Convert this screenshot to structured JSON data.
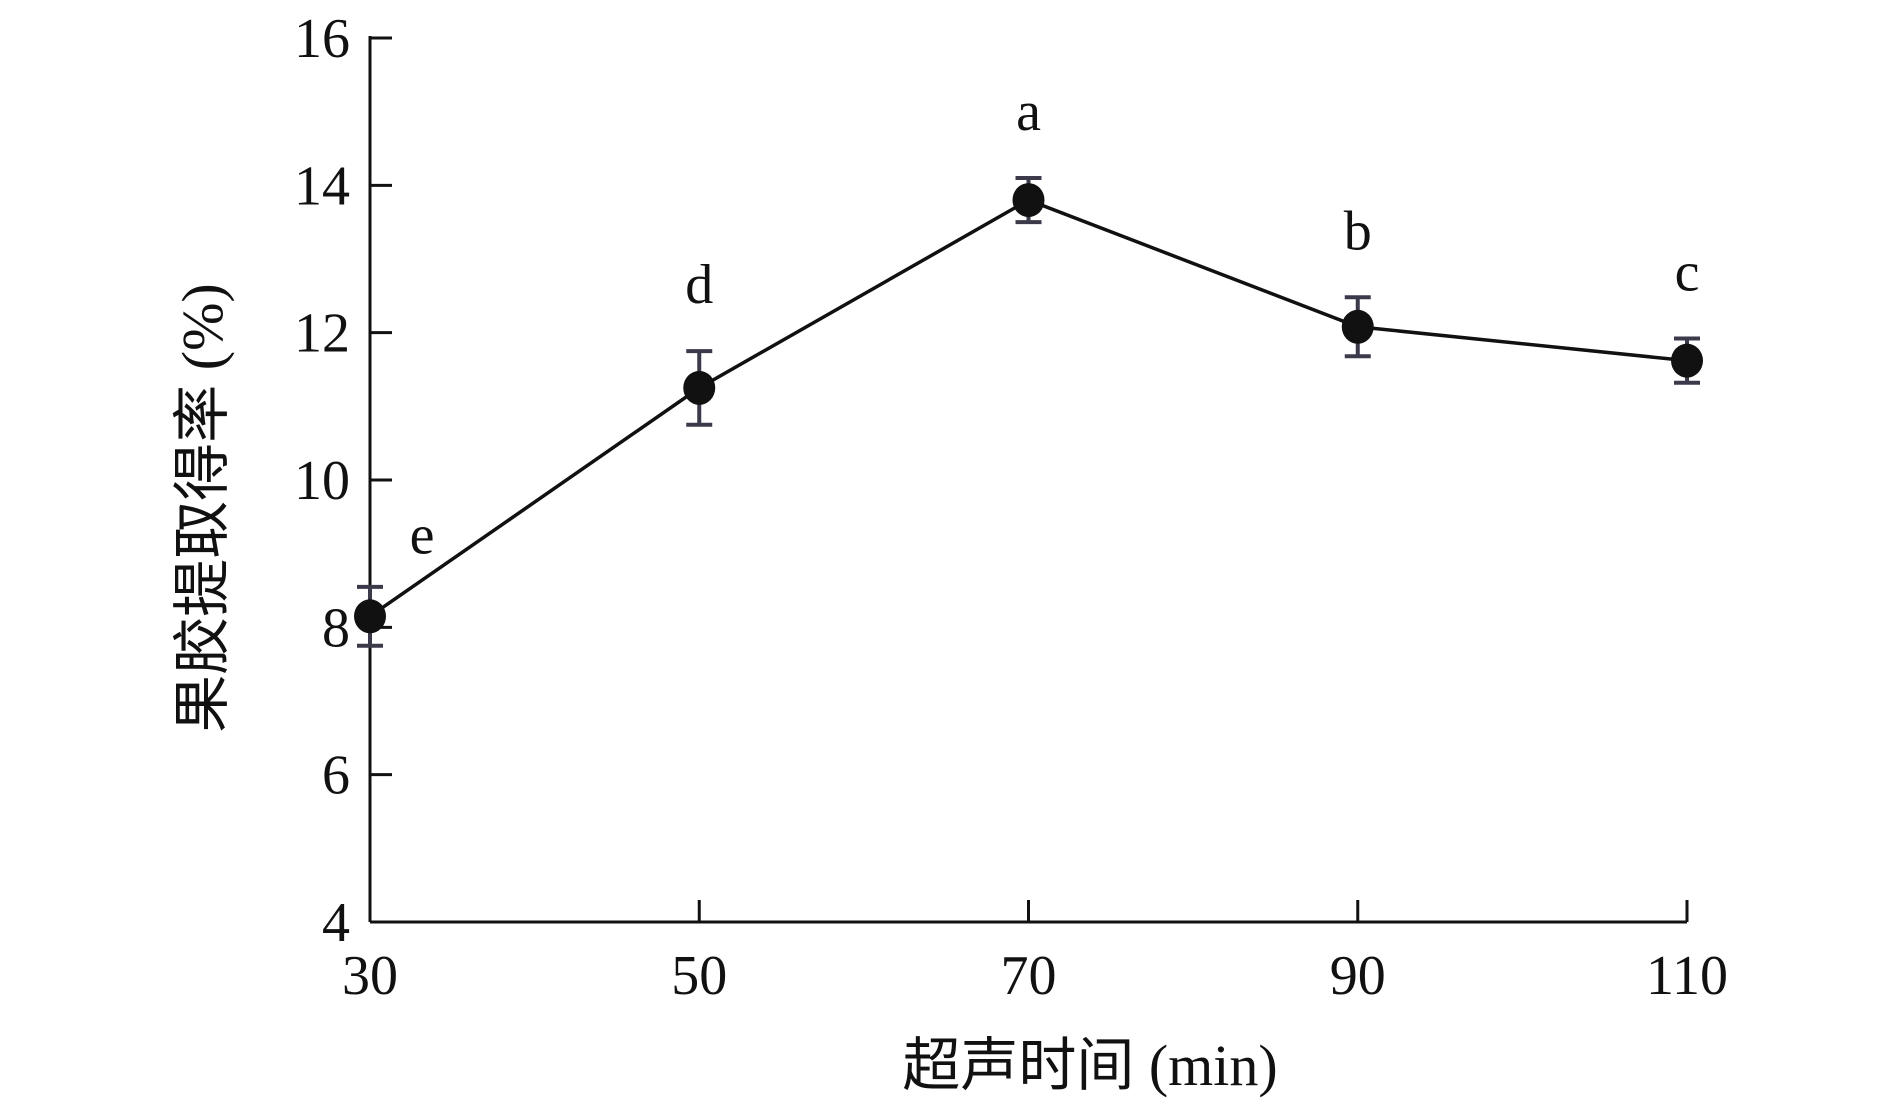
{
  "chart_data": {
    "type": "line",
    "xlabel": "超声时间 (min)",
    "ylabel": "果胶提取得率 (%)",
    "xlim": [
      30,
      110
    ],
    "ylim": [
      4,
      16
    ],
    "xticks": [
      30,
      50,
      70,
      90,
      110
    ],
    "yticks": [
      4,
      6,
      8,
      10,
      12,
      14,
      16
    ],
    "grid": false,
    "legend": "none",
    "colors": {
      "line": "#111111",
      "marker": "#111111",
      "error_bar": "#3a3a4a"
    },
    "series": [
      {
        "x": [
          30,
          50,
          70,
          90,
          110
        ],
        "y": [
          8.15,
          11.25,
          13.8,
          12.08,
          11.62
        ],
        "error": [
          0.4,
          0.5,
          0.3,
          0.4,
          0.3
        ],
        "labels": [
          "e",
          "d",
          "a",
          "b",
          "c"
        ]
      }
    ]
  }
}
